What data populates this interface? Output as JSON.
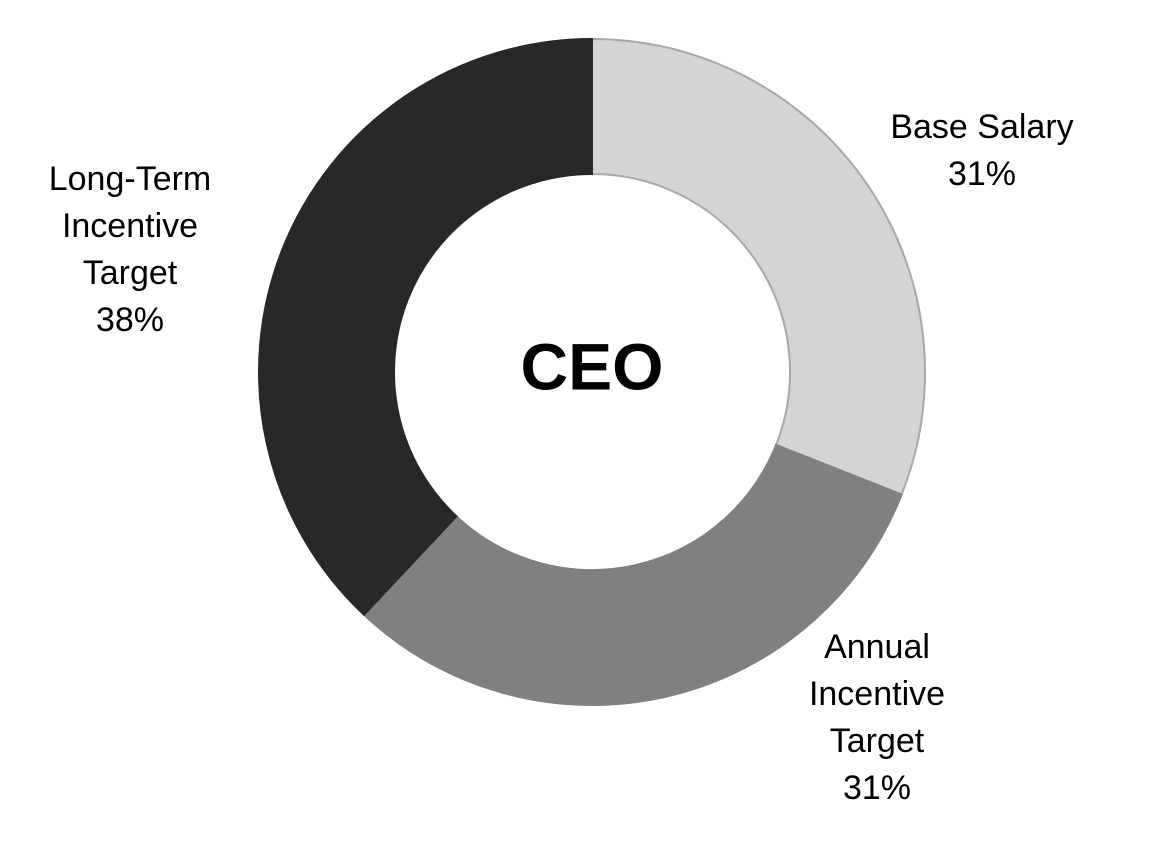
{
  "chart_data": {
    "type": "donut",
    "center_label": "CEO",
    "categories": [
      "Base Salary",
      "Annual Incentive Target",
      "Long-Term Incentive Target"
    ],
    "values": [
      31,
      31,
      38
    ],
    "value_labels": [
      "31%",
      "31%",
      "38%"
    ],
    "colors": [
      "#d4d4d4",
      "#808080",
      "#282828"
    ]
  }
}
